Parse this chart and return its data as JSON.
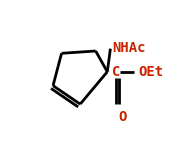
{
  "bg_color": "#ffffff",
  "bond_color": "#000000",
  "text_NHAc": "NHAc",
  "text_NHAc_color": "#cc2200",
  "text_C": "C",
  "text_C_color": "#cc2200",
  "text_OEt": "OEt",
  "text_OEt_color": "#cc2200",
  "text_O": "O",
  "text_O_color": "#cc2200",
  "bond_lw": 2.0,
  "font_size": 10
}
